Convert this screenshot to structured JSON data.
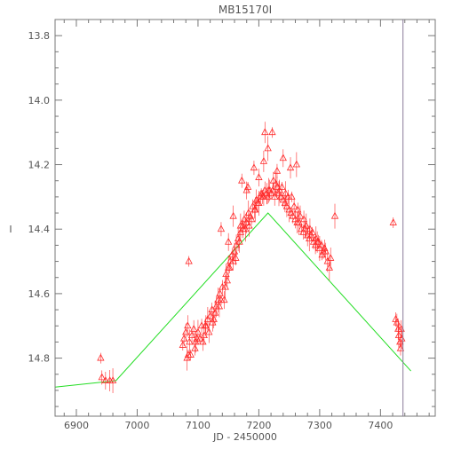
{
  "chart_data": {
    "type": "scatter",
    "title": "MB15170I",
    "xlabel": "JD - 2450000",
    "ylabel": "I",
    "xlim": [
      6865,
      7490
    ],
    "ylim": [
      14.98,
      13.75
    ],
    "x_ticks": [
      6900,
      7000,
      7100,
      7200,
      7300,
      7400
    ],
    "y_ticks": [
      13.8,
      14.0,
      14.2,
      14.4,
      14.6,
      14.8
    ],
    "x_tick_labels": [
      "6900",
      "7000",
      "7100",
      "7200",
      "7300",
      "7400"
    ],
    "y_tick_labels": [
      "13.8",
      "14.0",
      "14.2",
      "14.4",
      "14.6",
      "14.8"
    ],
    "grid": false,
    "legend": "none",
    "colors": {
      "points": "#ff2a2a",
      "model": "#22dd22",
      "marker_line": "#8a7a9a",
      "axes": "#777777"
    },
    "vertical_line_x": 7437,
    "series": [
      {
        "kind": "points",
        "marker": "triangle",
        "x": [
          6940,
          6942,
          6948,
          6955,
          6960,
          7075,
          7077,
          7080,
          7083,
          7086,
          7088,
          7090,
          7093,
          7096,
          7100,
          7103,
          7106,
          7110,
          7113,
          7116,
          7120,
          7123,
          7126,
          7130,
          7133,
          7136,
          7140,
          7143,
          7146,
          7150,
          7153,
          7156,
          7160,
          7163,
          7166,
          7170,
          7173,
          7176,
          7180,
          7183,
          7186,
          7190,
          7193,
          7196,
          7200,
          7203,
          7206,
          7210,
          7213,
          7216,
          7220,
          7223,
          7226,
          7230,
          7233,
          7236,
          7240,
          7243,
          7246,
          7250,
          7253,
          7256,
          7260,
          7263,
          7266,
          7270,
          7273,
          7276,
          7280,
          7283,
          7286,
          7290,
          7293,
          7296,
          7300,
          7303,
          7306,
          7310,
          7313,
          7316,
          7084,
          7095,
          7108,
          7118,
          7128,
          7138,
          7148,
          7158,
          7168,
          7178,
          7188,
          7198,
          7208,
          7218,
          7228,
          7238,
          7248,
          7258,
          7268,
          7278,
          7288,
          7298,
          7308,
          7318,
          7082,
          7098,
          7112,
          7124,
          7135,
          7145,
          7152,
          7162,
          7174,
          7184,
          7194,
          7204,
          7214,
          7224,
          7234,
          7244,
          7254,
          7264,
          7274,
          7284,
          7294,
          7304,
          7138,
          7150,
          7158,
          7170,
          7182,
          7192,
          7200,
          7208,
          7215,
          7222,
          7230,
          7240,
          7252,
          7262,
          7085,
          7172,
          7180,
          7210,
          7325,
          7421,
          7425,
          7427,
          7429,
          7430,
          7432,
          7433,
          7434,
          7435
        ],
        "y": [
          14.8,
          14.86,
          14.87,
          14.87,
          14.87,
          14.76,
          14.74,
          14.72,
          14.7,
          14.75,
          14.79,
          14.73,
          14.71,
          14.75,
          14.72,
          14.74,
          14.7,
          14.73,
          14.7,
          14.68,
          14.67,
          14.65,
          14.68,
          14.64,
          14.62,
          14.6,
          14.58,
          14.62,
          14.54,
          14.52,
          14.5,
          14.48,
          14.47,
          14.45,
          14.43,
          14.41,
          14.39,
          14.37,
          14.38,
          14.35,
          14.36,
          14.33,
          14.34,
          14.31,
          14.32,
          14.3,
          14.3,
          14.28,
          14.29,
          14.28,
          14.29,
          14.28,
          14.3,
          14.27,
          14.29,
          14.3,
          14.31,
          14.32,
          14.33,
          14.34,
          14.35,
          14.36,
          14.37,
          14.38,
          14.38,
          14.4,
          14.41,
          14.4,
          14.42,
          14.43,
          14.42,
          14.44,
          14.45,
          14.44,
          14.46,
          14.45,
          14.47,
          14.47,
          14.5,
          14.52,
          14.79,
          14.77,
          14.75,
          14.72,
          14.66,
          14.62,
          14.56,
          14.5,
          14.44,
          14.4,
          14.37,
          14.32,
          14.3,
          14.28,
          14.26,
          14.27,
          14.3,
          14.33,
          14.36,
          14.39,
          14.41,
          14.44,
          14.46,
          14.49,
          14.8,
          14.74,
          14.7,
          14.69,
          14.64,
          14.58,
          14.52,
          14.49,
          14.4,
          14.39,
          14.34,
          14.29,
          14.3,
          14.25,
          14.28,
          14.29,
          14.3,
          14.34,
          14.37,
          14.4,
          14.43,
          14.48,
          14.4,
          14.44,
          14.36,
          14.39,
          14.27,
          14.21,
          14.24,
          14.19,
          14.15,
          14.1,
          14.22,
          14.18,
          14.21,
          14.2,
          14.5,
          14.25,
          14.28,
          14.1,
          14.36,
          14.38,
          14.68,
          14.69,
          14.71,
          14.73,
          14.75,
          14.77,
          14.71,
          14.74
        ]
      },
      {
        "kind": "line",
        "x": [
          6865,
          6965,
          7215,
          7450
        ],
        "y": [
          14.89,
          14.87,
          14.35,
          14.84
        ]
      }
    ]
  }
}
